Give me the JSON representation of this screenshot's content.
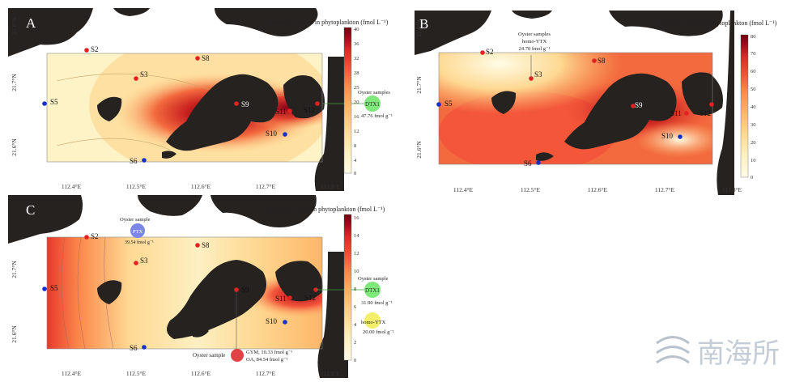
{
  "colorbar_stops": [
    "#fffce6",
    "#fef0c2",
    "#fed993",
    "#fdb769",
    "#fb8a4c",
    "#f2543a",
    "#d62a28",
    "#a40a20",
    "#6e0010"
  ],
  "land_color": "#262220",
  "panels": [
    {
      "label": "A",
      "title": "Lipophilic toxins in phytoplankton (fmol L⁻¹)",
      "colorbar_ticks": [
        "40",
        "36",
        "32",
        "28",
        "25",
        "20",
        "16",
        "12",
        "8",
        "4",
        "0"
      ],
      "x_ticks": [
        "112.4°E",
        "112.5°E",
        "112.6°E",
        "112.7°E",
        "112.8°E"
      ],
      "y_ticks": [
        "21.8°N",
        "21.7°N",
        "21.6°N"
      ],
      "stations": [
        {
          "name": "S2",
          "type": "red"
        },
        {
          "name": "S3",
          "type": "red"
        },
        {
          "name": "S8",
          "type": "red"
        },
        {
          "name": "S5",
          "type": "blue"
        },
        {
          "name": "S9",
          "type": "red"
        },
        {
          "name": "S11",
          "type": "red"
        },
        {
          "name": "S12",
          "type": "red"
        },
        {
          "name": "S10",
          "type": "blue"
        },
        {
          "name": "S6",
          "type": "blue"
        }
      ],
      "callouts": [
        {
          "heading": "Oyster samples",
          "badge": "DTX1",
          "value": "47.76 fmol g⁻¹",
          "color": "#7ee87a"
        }
      ]
    },
    {
      "label": "B",
      "title": "Lipophilic toxins in phytoplankton (fmol L⁻¹)",
      "colorbar_ticks": [
        "80",
        "70",
        "60",
        "50",
        "40",
        "30",
        "20",
        "10",
        "0"
      ],
      "x_ticks": [
        "112.4°E",
        "112.5°E",
        "112.6°E",
        "112.7°E",
        "112.8°E"
      ],
      "y_ticks": [
        "21.8°N",
        "21.7°N",
        "21.6°N"
      ],
      "stations": [
        {
          "name": "S2",
          "type": "red"
        },
        {
          "name": "S3",
          "type": "red"
        },
        {
          "name": "S8",
          "type": "red"
        },
        {
          "name": "S5",
          "type": "blue"
        },
        {
          "name": "S9",
          "type": "red"
        },
        {
          "name": "S11",
          "type": "red"
        },
        {
          "name": "S12",
          "type": "red"
        },
        {
          "name": "S10",
          "type": "blue"
        },
        {
          "name": "S6",
          "type": "blue"
        }
      ],
      "callouts": [
        {
          "heading": "Oyster samples",
          "badge": "homo-YTX",
          "value": "24.70 fmol g⁻¹",
          "color": ""
        }
      ]
    },
    {
      "label": "C",
      "title": "Lipophilic toxins in phytoplankton (fmol L⁻¹)",
      "colorbar_ticks": [
        "16",
        "14",
        "12",
        "10",
        "8",
        "6",
        "4",
        "2",
        "0"
      ],
      "x_ticks": [
        "112.4°E",
        "112.5°E",
        "112.6°E",
        "112.7°E",
        "112.8°E"
      ],
      "y_ticks": [
        "21.7°N",
        "21.6°N"
      ],
      "stations": [
        {
          "name": "S2",
          "type": "red"
        },
        {
          "name": "S3",
          "type": "red"
        },
        {
          "name": "S8",
          "type": "red"
        },
        {
          "name": "S5",
          "type": "blue"
        },
        {
          "name": "S9",
          "type": "red"
        },
        {
          "name": "S11",
          "type": "red"
        },
        {
          "name": "S12",
          "type": "red"
        },
        {
          "name": "S10",
          "type": "blue"
        },
        {
          "name": "S6",
          "type": "blue"
        }
      ],
      "callouts": [
        {
          "heading": "Oyster sample",
          "badge": "PTX",
          "value": "39.54 fmol g⁻¹",
          "color": "#7b86e8"
        },
        {
          "heading": "Oyster sample",
          "badge": "DTX1",
          "value": "31.90 fmol g⁻¹",
          "color": "#7ee87a"
        },
        {
          "heading": "",
          "badge": "homo-YTX",
          "value": "20.00 fmol g⁻¹",
          "color": "#f3ef6a"
        },
        {
          "heading": "Oyster sample",
          "badge": "GYM, 10.33 fmol g⁻¹",
          "value": "OA, 84.54 fmol g⁻¹",
          "color": "#e04343"
        }
      ]
    }
  ],
  "watermark_text": "南海所"
}
